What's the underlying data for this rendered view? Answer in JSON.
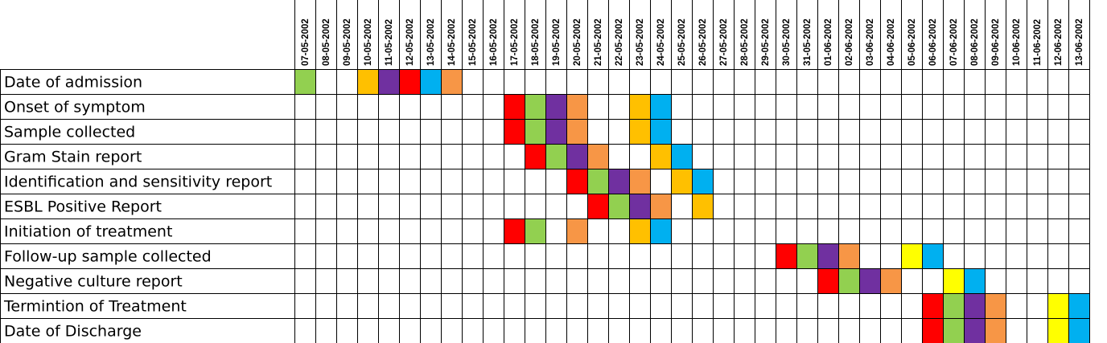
{
  "chart_data": {
    "type": "heatmap",
    "dates": [
      "07-05-2002",
      "08-05-2002",
      "09-05-2002",
      "10-05-2002",
      "11-05-2002",
      "12-05-2002",
      "13-05-2002",
      "14-05-2002",
      "15-05-2002",
      "16-05-2002",
      "17-05-2002",
      "18-05-2002",
      "19-05-2002",
      "20-05-2002",
      "21-05-2002",
      "22-05-2002",
      "23-05-2002",
      "24-05-2002",
      "25-05-2002",
      "26-05-2002",
      "27-05-2002",
      "28-05-2002",
      "29-05-2002",
      "30-05-2002",
      "31-05-2002",
      "01-06-2002",
      "02-06-2002",
      "03-06-2002",
      "04-06-2002",
      "05-06-2002",
      "06-06-2002",
      "07-06-2002",
      "08-06-2002",
      "09-06-2002",
      "10-06-2002",
      "11-06-2002",
      "12-06-2002",
      "13-06-2002"
    ],
    "colors": {
      "green": "#92d050",
      "orange": "#ffc000",
      "purple": "#7030a0",
      "red": "#ff0000",
      "blue": "#00b0f0",
      "salmon": "#f79646",
      "yellow": "#ffff00"
    },
    "rows": [
      {
        "label": "Date of admission",
        "cells": [
          [
            0,
            "green"
          ],
          [
            3,
            "orange"
          ],
          [
            4,
            "purple"
          ],
          [
            5,
            "red"
          ],
          [
            6,
            "blue"
          ],
          [
            7,
            "salmon"
          ]
        ]
      },
      {
        "label": "Onset of symptom",
        "cells": [
          [
            10,
            "red"
          ],
          [
            11,
            "green"
          ],
          [
            12,
            "purple"
          ],
          [
            13,
            "salmon"
          ],
          [
            16,
            "orange"
          ],
          [
            17,
            "blue"
          ]
        ]
      },
      {
        "label": "Sample collected",
        "cells": [
          [
            10,
            "red"
          ],
          [
            11,
            "green"
          ],
          [
            12,
            "purple"
          ],
          [
            13,
            "salmon"
          ],
          [
            16,
            "orange"
          ],
          [
            17,
            "blue"
          ]
        ]
      },
      {
        "label": "Gram Stain report",
        "cells": [
          [
            11,
            "red"
          ],
          [
            12,
            "green"
          ],
          [
            13,
            "purple"
          ],
          [
            14,
            "salmon"
          ],
          [
            17,
            "orange"
          ],
          [
            18,
            "blue"
          ]
        ]
      },
      {
        "label": "Identification and sensitivity report",
        "cells": [
          [
            13,
            "red"
          ],
          [
            14,
            "green"
          ],
          [
            15,
            "purple"
          ],
          [
            16,
            "salmon"
          ],
          [
            18,
            "orange"
          ],
          [
            19,
            "blue"
          ]
        ]
      },
      {
        "label": "ESBL Positive Report",
        "cells": [
          [
            14,
            "red"
          ],
          [
            15,
            "green"
          ],
          [
            16,
            "purple"
          ],
          [
            17,
            "salmon"
          ],
          [
            19,
            "orange"
          ]
        ]
      },
      {
        "label": "Initiation of treatment",
        "cells": [
          [
            10,
            "red"
          ],
          [
            11,
            "green"
          ],
          [
            13,
            "salmon"
          ],
          [
            16,
            "orange"
          ],
          [
            17,
            "blue"
          ]
        ]
      },
      {
        "label": "Follow-up sample collected",
        "cells": [
          [
            23,
            "red"
          ],
          [
            24,
            "green"
          ],
          [
            25,
            "purple"
          ],
          [
            26,
            "salmon"
          ],
          [
            29,
            "yellow"
          ],
          [
            30,
            "blue"
          ]
        ]
      },
      {
        "label": "Negative culture report",
        "cells": [
          [
            25,
            "red"
          ],
          [
            26,
            "green"
          ],
          [
            27,
            "purple"
          ],
          [
            28,
            "salmon"
          ],
          [
            31,
            "yellow"
          ],
          [
            32,
            "blue"
          ]
        ]
      },
      {
        "label": "Termintion of Treatment",
        "cells": [
          [
            30,
            "red"
          ],
          [
            31,
            "green"
          ],
          [
            32,
            "purple"
          ],
          [
            33,
            "salmon"
          ],
          [
            36,
            "yellow"
          ],
          [
            37,
            "blue"
          ]
        ]
      },
      {
        "label": "Date of Discharge",
        "cells": [
          [
            30,
            "red"
          ],
          [
            31,
            "green"
          ],
          [
            32,
            "purple"
          ],
          [
            33,
            "salmon"
          ],
          [
            36,
            "yellow"
          ],
          [
            37,
            "blue"
          ]
        ]
      }
    ]
  }
}
